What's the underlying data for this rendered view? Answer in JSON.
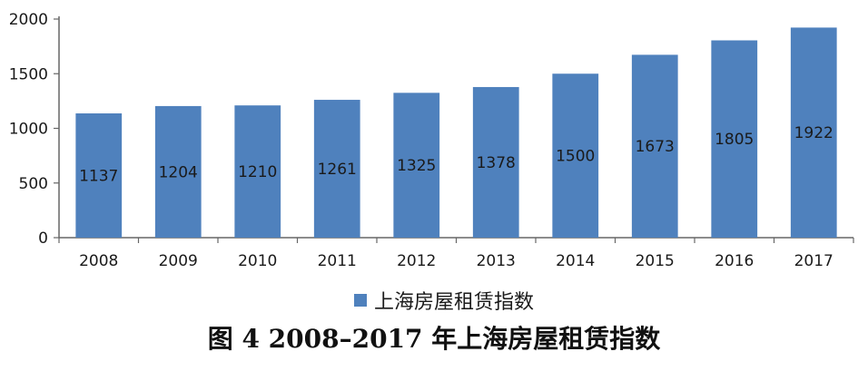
{
  "chart_data": {
    "type": "bar",
    "categories": [
      "2008",
      "2009",
      "2010",
      "2011",
      "2012",
      "2013",
      "2014",
      "2015",
      "2016",
      "2017"
    ],
    "series": [
      {
        "name": "上海房屋租赁指数",
        "values": [
          1137,
          1204,
          1210,
          1261,
          1325,
          1378,
          1500,
          1673,
          1805,
          1922
        ],
        "color": "#4f81bd"
      }
    ],
    "yticks": [
      "0",
      "500",
      "1000",
      "1500",
      "2000"
    ],
    "ylim": [
      0,
      2000
    ],
    "grid": false,
    "legend": "bottom",
    "data_labels": true
  },
  "caption": "图 4  2008–2017 年上海房屋租赁指数"
}
